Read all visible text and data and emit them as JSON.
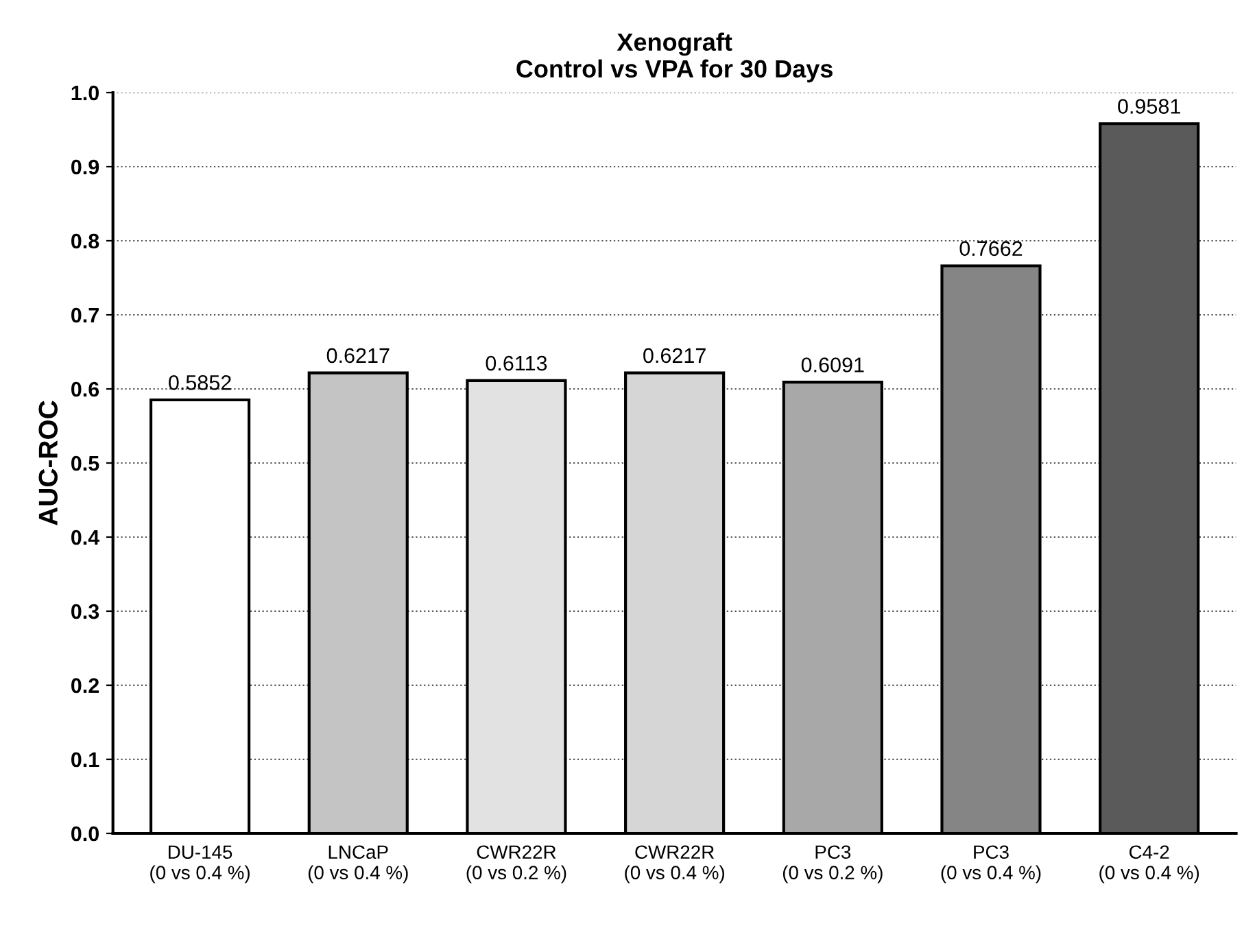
{
  "chart_data": {
    "type": "bar",
    "title": "Xenograft\nControl vs VPA for 30 Days",
    "ylabel": "AUC-ROC",
    "categories": [
      "DU-145\n(0 vs 0.4 %)",
      "LNCaP\n(0 vs 0.4 %)",
      "CWR22R\n(0 vs 0.2 %)",
      "CWR22R\n(0 vs 0.4 %)",
      "PC3\n(0 vs 0.2 %)",
      "PC3\n(0 vs 0.4 %)",
      "C4-2\n(0 vs 0.4 %)"
    ],
    "values": [
      0.5852,
      0.6217,
      0.6113,
      0.6217,
      0.6091,
      0.7662,
      0.9581
    ],
    "value_labels": [
      "0.5852",
      "0.6217",
      "0.6113",
      "0.6217",
      "0.6091",
      "0.7662",
      "0.9581"
    ],
    "colors": [
      "#ffffff",
      "#c4c4c4",
      "#e2e2e2",
      "#d6d6d6",
      "#a8a8a8",
      "#858585",
      "#5a5a5a"
    ],
    "ylim": [
      0,
      1.0
    ],
    "yticks": [
      {
        "value": 0,
        "label": "0.0"
      },
      0.1,
      0.2,
      0.3,
      0.4,
      0.5,
      0.6,
      0.7,
      0.8,
      0.9,
      {
        "value": 1.0,
        "label": "1.0"
      }
    ],
    "grid": "y"
  }
}
